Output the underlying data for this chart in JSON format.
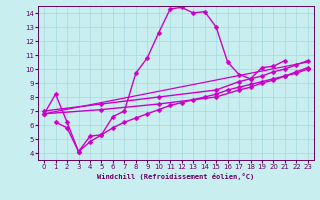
{
  "xlabel": "Windchill (Refroidissement éolien,°C)",
  "background_color": "#c8eef0",
  "grid_color": "#a8d8dc",
  "line_color": "#cc00cc",
  "xlim": [
    -0.5,
    23.5
  ],
  "ylim": [
    3.5,
    14.5
  ],
  "xticks": [
    0,
    1,
    2,
    3,
    4,
    5,
    6,
    7,
    8,
    9,
    10,
    11,
    12,
    13,
    14,
    15,
    16,
    17,
    18,
    19,
    20,
    21,
    22,
    23
  ],
  "yticks": [
    4,
    5,
    6,
    7,
    8,
    9,
    10,
    11,
    12,
    13,
    14
  ],
  "lines": [
    {
      "x": [
        0,
        1,
        2,
        3,
        4,
        5,
        6,
        7,
        8,
        9,
        10,
        11,
        12,
        13,
        14,
        15,
        16,
        17,
        18,
        19,
        20,
        21
      ],
      "y": [
        6.8,
        8.2,
        6.2,
        4.1,
        5.2,
        5.3,
        6.6,
        7.0,
        9.7,
        10.8,
        12.6,
        14.3,
        14.4,
        14.0,
        14.1,
        13.0,
        10.5,
        9.6,
        9.3,
        10.1,
        10.2,
        10.6
      ],
      "marker": "D",
      "markersize": 2.5,
      "linewidth": 1.0
    },
    {
      "x": [
        0,
        5,
        10,
        15,
        17,
        18,
        19,
        20,
        21,
        22,
        23
      ],
      "y": [
        7.0,
        7.5,
        8.0,
        8.5,
        9.1,
        9.3,
        9.5,
        9.8,
        10.0,
        10.3,
        10.6
      ],
      "marker": "D",
      "markersize": 2.5,
      "linewidth": 1.0
    },
    {
      "x": [
        0,
        5,
        10,
        15,
        17,
        18,
        19,
        20,
        21,
        22,
        23
      ],
      "y": [
        6.8,
        7.1,
        7.5,
        8.0,
        8.5,
        8.7,
        9.0,
        9.2,
        9.5,
        9.8,
        10.1
      ],
      "marker": "D",
      "markersize": 2.5,
      "linewidth": 1.0
    },
    {
      "x": [
        0,
        23
      ],
      "y": [
        6.8,
        10.5
      ],
      "marker": null,
      "markersize": 0,
      "linewidth": 0.9
    },
    {
      "x": [
        1,
        2,
        3,
        4,
        5,
        6,
        7,
        8,
        9,
        10,
        11,
        12,
        13,
        14,
        15,
        16,
        17,
        18,
        19,
        20,
        21,
        22,
        23
      ],
      "y": [
        6.2,
        5.8,
        4.1,
        4.8,
        5.3,
        5.8,
        6.2,
        6.5,
        6.8,
        7.1,
        7.4,
        7.6,
        7.8,
        8.0,
        8.2,
        8.5,
        8.7,
        8.9,
        9.1,
        9.3,
        9.5,
        9.7,
        10.0
      ],
      "marker": "D",
      "markersize": 2.5,
      "linewidth": 1.0
    }
  ]
}
